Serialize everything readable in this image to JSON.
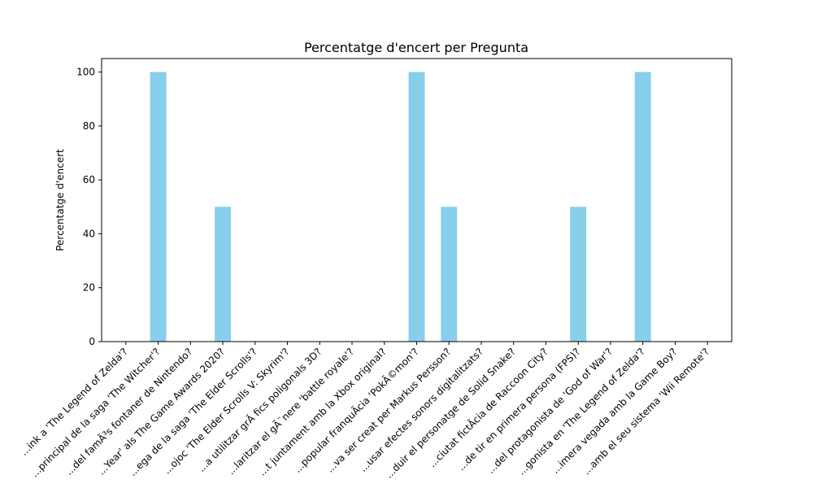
{
  "chart_data": {
    "type": "bar",
    "title": "Percentatge d'encert per Pregunta",
    "xlabel": "",
    "ylabel": "Percentatge d'encert",
    "ylim": [
      0,
      105
    ],
    "yticks": [
      0,
      20,
      40,
      60,
      80,
      100
    ],
    "grid": false,
    "bar_color": "#87ceeb",
    "categories": [
      "...ink a 'The Legend of Zelda'?",
      "...principal de la saga 'The Witcher'?",
      "...del famÃ³s fontaner de Nintendo?",
      "...Year' als The Game Awards 2020?",
      "...ega de la saga 'The Elder Scrolls'?",
      "...ojoc 'The Elder Scrolls V: Skyrim'?",
      "...a utilitzar grÃ fics poligonals 3D?",
      "...laritzar el gÃ¨nere 'battle royale'?",
      "...t juntament amb la Xbox original?",
      "...popular franquÃ­cia 'PokÃ©mon'?",
      "...va ser creat per Markus Persson?",
      "...usar efectes sonors digitalitzats?",
      "...duir el personatge de Solid Snake?",
      "...ciutat fictÃ­cia de Raccoon City?",
      "...de tir en primera persona (FPS)?",
      "...del protagonista de 'God of War'?",
      "...gonista en 'The Legend of Zelda'?",
      "...imera vegada amb la Game Boy?",
      "...amb el seu sistema 'Wii Remote'?"
    ],
    "values": [
      0,
      100,
      0,
      50,
      0,
      0,
      0,
      0,
      0,
      100,
      50,
      0,
      0,
      0,
      50,
      0,
      100,
      0,
      0
    ]
  }
}
